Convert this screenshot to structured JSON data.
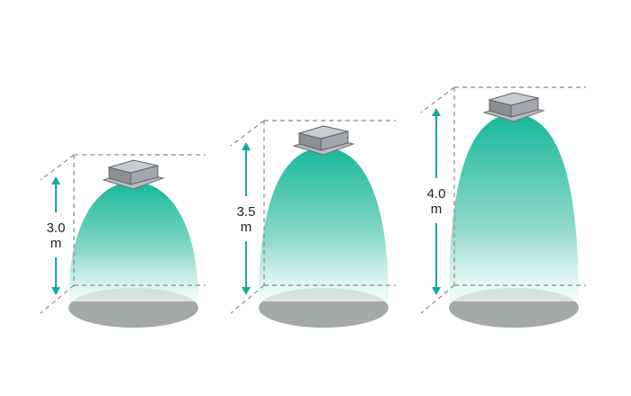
{
  "units": [
    {
      "height_value": "3.0",
      "height_unit": "m"
    },
    {
      "height_value": "3.5",
      "height_unit": "m"
    },
    {
      "height_value": "4.0",
      "height_unit": "m"
    }
  ],
  "colors": {
    "cone_top": "#16b898",
    "cone_bottom": "#f2fbf9",
    "floor": "#a3a8a8",
    "arrow": "#17a99a",
    "device": "#9a9ea2"
  }
}
